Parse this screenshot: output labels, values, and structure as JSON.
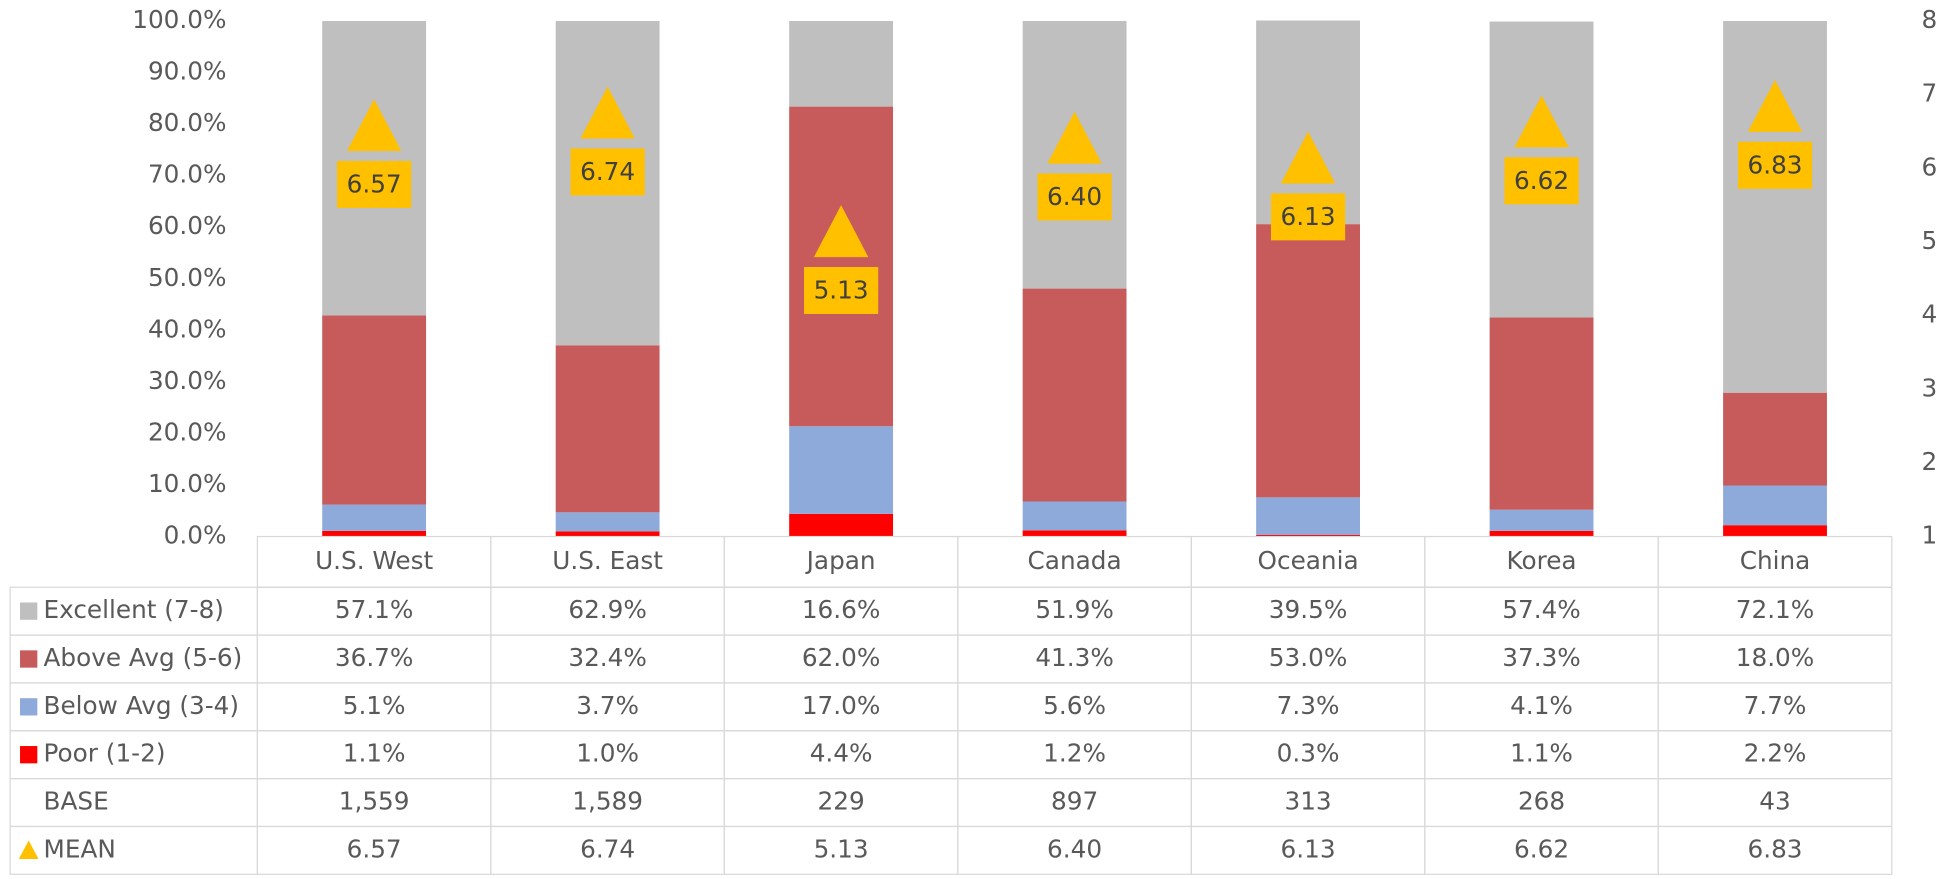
{
  "chart_data": {
    "type": "bar",
    "stacked": true,
    "categories": [
      "U.S. West",
      "U.S. East",
      "Japan",
      "Canada",
      "Oceania",
      "Korea",
      "China"
    ],
    "series": [
      {
        "name": "Excellent (7-8)",
        "color": "#bfbfbf",
        "values": [
          57.1,
          62.9,
          16.6,
          51.9,
          39.5,
          57.4,
          72.1
        ],
        "value_labels": [
          "57.1%",
          "62.9%",
          "16.6%",
          "51.9%",
          "39.5%",
          "57.4%",
          "72.1%"
        ]
      },
      {
        "name": "Above Avg (5-6)",
        "color": "#c75b5b",
        "values": [
          36.7,
          32.4,
          62.0,
          41.3,
          53.0,
          37.3,
          18.0
        ],
        "value_labels": [
          "36.7%",
          "32.4%",
          "62.0%",
          "41.3%",
          "53.0%",
          "37.3%",
          "18.0%"
        ]
      },
      {
        "name": "Below Avg (3-4)",
        "color": "#8eaadb",
        "values": [
          5.1,
          3.7,
          17.0,
          5.6,
          7.3,
          4.1,
          7.7
        ],
        "value_labels": [
          "5.1%",
          "3.7%",
          "17.0%",
          "5.6%",
          "7.3%",
          "4.1%",
          "7.7%"
        ]
      },
      {
        "name": "Poor (1-2)",
        "color": "#ff0000",
        "values": [
          1.1,
          1.0,
          4.4,
          1.2,
          0.3,
          1.1,
          2.2
        ],
        "value_labels": [
          "1.1%",
          "1.0%",
          "4.4%",
          "1.2%",
          "0.3%",
          "1.1%",
          "2.2%"
        ]
      }
    ],
    "base": {
      "name": "BASE",
      "values": [
        "1,559",
        "1,589",
        "229",
        "897",
        "313",
        "268",
        "43"
      ]
    },
    "mean": {
      "name": "MEAN",
      "color": "#ffc000",
      "axis": "y2",
      "values": [
        6.57,
        6.74,
        5.13,
        6.4,
        6.13,
        6.62,
        6.83
      ],
      "value_labels": [
        "6.57",
        "6.74",
        "5.13",
        "6.40",
        "6.13",
        "6.62",
        "6.83"
      ]
    },
    "ylim": [
      0,
      100
    ],
    "yticks": [
      {
        "value": 0,
        "label": "0.0%"
      },
      {
        "value": 10,
        "label": "10.0%"
      },
      {
        "value": 20,
        "label": "20.0%"
      },
      {
        "value": 30,
        "label": "30.0%"
      },
      {
        "value": 40,
        "label": "40.0%"
      },
      {
        "value": 50,
        "label": "50.0%"
      },
      {
        "value": 60,
        "label": "60.0%"
      },
      {
        "value": 70,
        "label": "70.0%"
      },
      {
        "value": 80,
        "label": "80.0%"
      },
      {
        "value": 90,
        "label": "90.0%"
      },
      {
        "value": 100,
        "label": "100.0%"
      }
    ],
    "y2lim": [
      1,
      8
    ],
    "y2ticks": [
      1,
      2,
      3,
      4,
      5,
      6,
      7,
      8
    ]
  }
}
